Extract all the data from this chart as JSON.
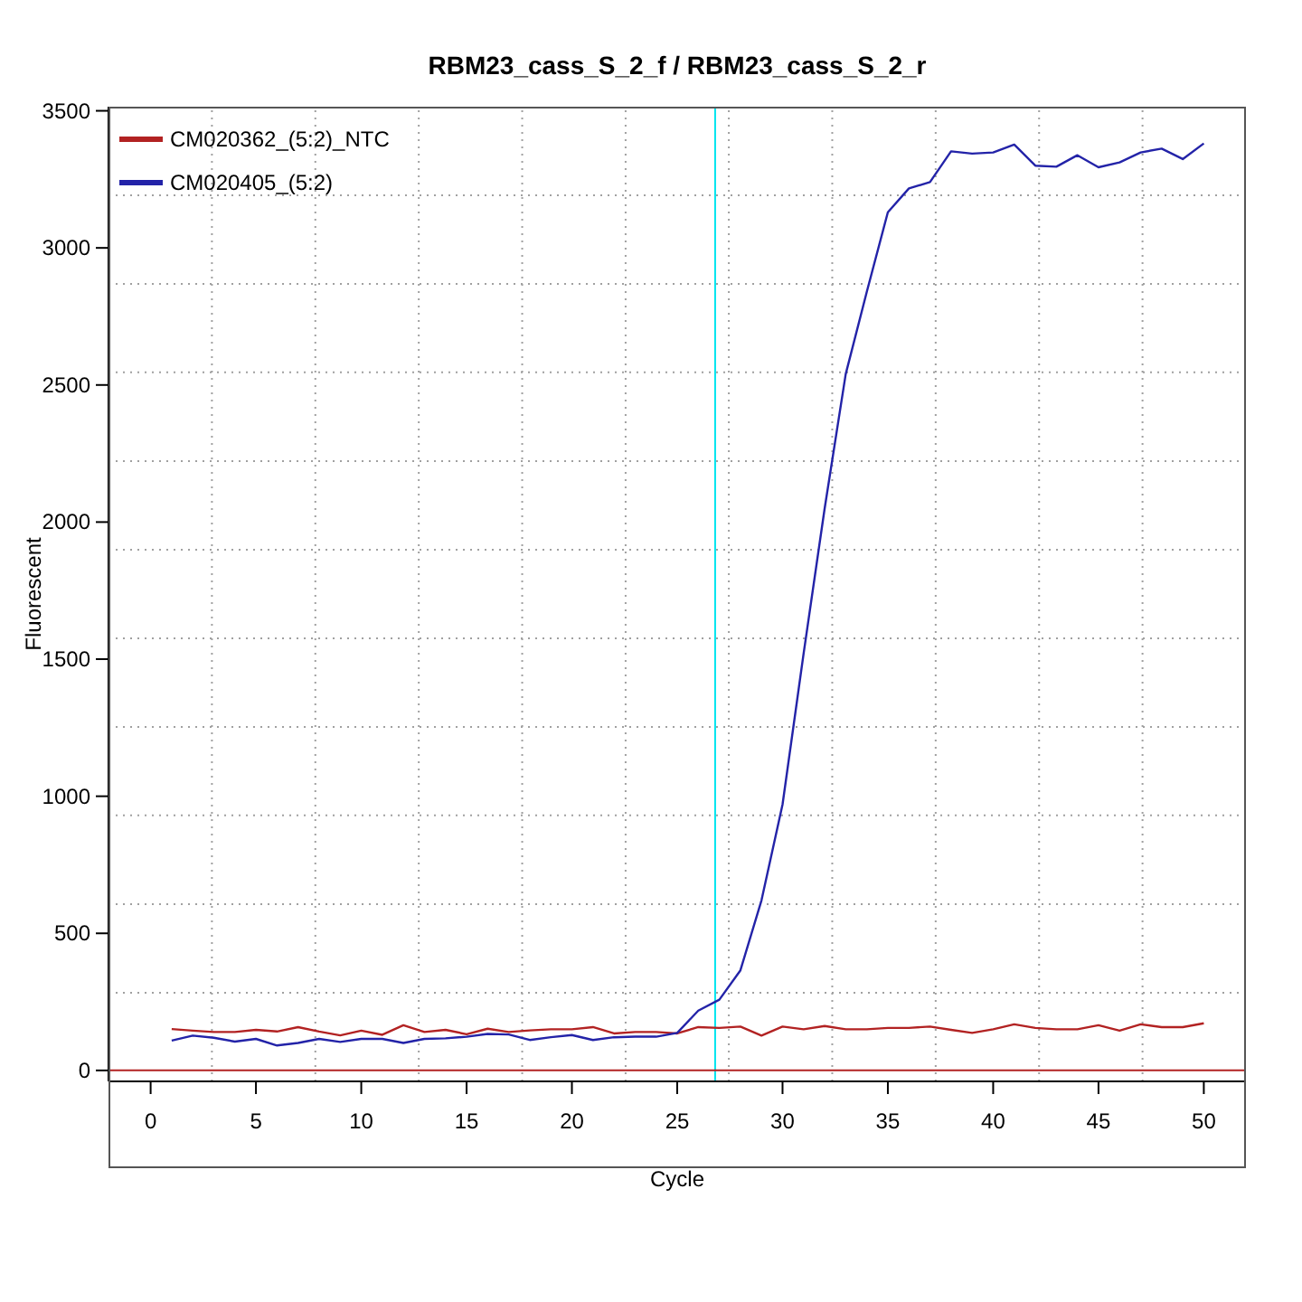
{
  "chart_data": {
    "type": "line",
    "title": "RBM23_cass_S_2_f / RBM23_cass_S_2_r",
    "xlabel": "Cycle",
    "ylabel": "Fluorescent",
    "x": [
      1,
      2,
      3,
      4,
      5,
      6,
      7,
      8,
      9,
      10,
      11,
      12,
      13,
      14,
      15,
      16,
      17,
      18,
      19,
      20,
      21,
      22,
      23,
      24,
      25,
      26,
      27,
      28,
      29,
      30,
      31,
      32,
      33,
      34,
      35,
      36,
      37,
      38,
      39,
      40,
      41,
      42,
      43,
      44,
      45,
      46,
      47,
      48,
      49,
      50
    ],
    "series": [
      {
        "name": "CM020362_(5:2)_NTC",
        "color": "#b22222",
        "values": [
          151,
          145,
          140,
          140,
          148,
          142,
          158,
          142,
          128,
          145,
          130,
          165,
          140,
          148,
          132,
          152,
          140,
          146,
          150,
          150,
          158,
          135,
          140,
          140,
          135,
          158,
          155,
          160,
          127,
          160,
          150,
          162,
          150,
          150,
          155,
          155,
          160,
          148,
          137,
          150,
          168,
          155,
          150,
          150,
          165,
          145,
          168,
          158,
          158,
          172
        ]
      },
      {
        "name": "CM020405_(5:2)",
        "color": "#2323a8",
        "values": [
          109,
          127,
          119,
          105,
          115,
          91,
          100,
          115,
          104,
          115,
          115,
          100,
          115,
          117,
          123,
          133,
          131,
          111,
          121,
          129,
          111,
          121,
          123,
          123,
          137,
          218,
          258,
          365,
          620,
          970,
          1520,
          2050,
          2540,
          2840,
          3130,
          3217,
          3240,
          3352,
          3344,
          3348,
          3377,
          3300,
          3296,
          3338,
          3294,
          3312,
          3348,
          3362,
          3324,
          3381
        ]
      }
    ],
    "xlim": [
      -2,
      52
    ],
    "xticks": [
      0,
      {
        "value": 2.91,
        "label": null
      },
      5,
      {
        "value": 7.82,
        "label": null
      },
      10,
      {
        "value": 12.73,
        "label": null
      },
      15,
      {
        "value": 17.64,
        "label": null
      },
      20,
      {
        "value": 22.55,
        "label": null
      },
      25,
      {
        "value": 27.45,
        "label": null
      },
      30,
      {
        "value": 32.36,
        "label": null
      },
      35,
      {
        "value": 37.27,
        "label": null
      },
      40,
      {
        "value": 42.18,
        "label": null
      },
      45,
      {
        "value": 47.09,
        "label": null
      },
      50
    ],
    "ylim": [
      -40,
      3515
    ],
    "yticks": [
      0,
      {
        "value": 283,
        "label": null
      },
      500,
      {
        "value": 606,
        "label": null
      },
      {
        "value": 930,
        "label": null
      },
      1000,
      {
        "value": 1253,
        "label": null
      },
      1500,
      {
        "value": 1576,
        "label": null
      },
      {
        "value": 1899,
        "label": null
      },
      2000,
      {
        "value": 2222,
        "label": null
      },
      2500,
      {
        "value": 2546,
        "label": null
      },
      {
        "value": 2869,
        "label": null
      },
      3000,
      {
        "value": 3192,
        "label": null
      },
      3500
    ],
    "ref_lines": [
      {
        "axis": "x",
        "value": 26.8,
        "color": "#00e5ee"
      },
      {
        "axis": "y",
        "value": 0,
        "color": "#b22222"
      }
    ],
    "grid": true,
    "legend": "top left",
    "line_style": "solid",
    "marker": "none"
  }
}
